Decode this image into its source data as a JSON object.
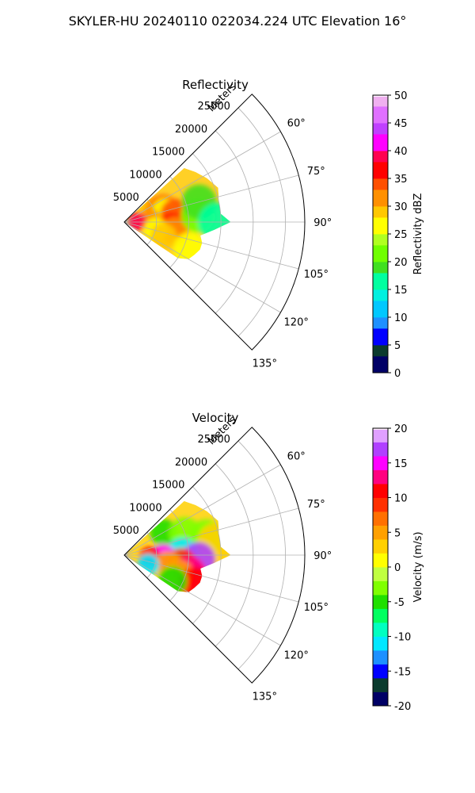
{
  "figure_title": "SKYLER-HU  20240110  022034.224 UTC Elevation 16°",
  "chart_data": [
    {
      "type": "heatmap",
      "subtype": "polar-sector-radar",
      "title": "Reflectivity",
      "radial_label": "Meters",
      "range_ticks": [
        5000,
        10000,
        15000,
        20000,
        25000
      ],
      "range_tick_labels": [
        "5000",
        "10000",
        "15000",
        "20000",
        "25000"
      ],
      "rmax": 28000,
      "azimuth_range": [
        45,
        135
      ],
      "azimuth_ticks": [
        60,
        75,
        90,
        105,
        120,
        135
      ],
      "azimuth_tick_labels": [
        "60°",
        "75°",
        "90°",
        "105°",
        "120°",
        "135°"
      ],
      "grid": true,
      "echo_extent": [
        {
          "azimuth": 48,
          "range": 12500
        },
        {
          "azimuth": 55,
          "range": 13500
        },
        {
          "azimuth": 62,
          "range": 14500
        },
        {
          "azimuth": 70,
          "range": 15500
        },
        {
          "azimuth": 78,
          "range": 15000
        },
        {
          "azimuth": 85,
          "range": 15000
        },
        {
          "azimuth": 90,
          "range": 16500
        },
        {
          "azimuth": 95,
          "range": 14000
        },
        {
          "azimuth": 100,
          "range": 12000
        },
        {
          "azimuth": 105,
          "range": 12500
        },
        {
          "azimuth": 110,
          "range": 12500
        },
        {
          "azimuth": 115,
          "range": 12000
        },
        {
          "azimuth": 120,
          "range": 11500
        },
        {
          "azimuth": 124,
          "range": 10000
        }
      ],
      "cells": [
        {
          "azimuth": 65,
          "range": 4500,
          "value": 28
        },
        {
          "azimuth": 68,
          "range": 5500,
          "value": 30
        },
        {
          "azimuth": 70,
          "range": 6500,
          "value": 33
        },
        {
          "azimuth": 75,
          "range": 6500,
          "value": 26
        },
        {
          "azimuth": 80,
          "range": 8000,
          "value": 34
        },
        {
          "azimuth": 85,
          "range": 4000,
          "value": 32
        },
        {
          "azimuth": 88,
          "range": 2000,
          "value": 38
        },
        {
          "azimuth": 95,
          "range": 7500,
          "value": 35
        },
        {
          "azimuth": 100,
          "range": 8000,
          "value": 31
        },
        {
          "azimuth": 103,
          "range": 5000,
          "value": 27
        },
        {
          "azimuth": 110,
          "range": 6500,
          "value": 28
        },
        {
          "azimuth": 112,
          "range": 11000,
          "value": 25
        },
        {
          "azimuth": 85,
          "range": 11500,
          "value": 20
        },
        {
          "azimuth": 75,
          "range": 12000,
          "value": 18
        },
        {
          "azimuth": 90,
          "range": 14500,
          "value": 15
        }
      ],
      "colorbar": {
        "label": "Reflectivity dBZ",
        "min": 0,
        "max": 50,
        "ticks": [
          0,
          5,
          10,
          15,
          20,
          25,
          30,
          35,
          40,
          45,
          50
        ],
        "colormap": [
          {
            "value": 0,
            "color": "#000066"
          },
          {
            "value": 3,
            "color": "#0b3b2e"
          },
          {
            "value": 5,
            "color": "#0000ff"
          },
          {
            "value": 8,
            "color": "#1e90ff"
          },
          {
            "value": 10,
            "color": "#00c8ff"
          },
          {
            "value": 13,
            "color": "#00f0e0"
          },
          {
            "value": 15,
            "color": "#00ffa0"
          },
          {
            "value": 18,
            "color": "#40e020"
          },
          {
            "value": 20,
            "color": "#70ff00"
          },
          {
            "value": 23,
            "color": "#b0ff20"
          },
          {
            "value": 25,
            "color": "#ffff00"
          },
          {
            "value": 28,
            "color": "#ffc800"
          },
          {
            "value": 30,
            "color": "#ff9000"
          },
          {
            "value": 33,
            "color": "#ff5000"
          },
          {
            "value": 35,
            "color": "#ff0000"
          },
          {
            "value": 38,
            "color": "#ff0050"
          },
          {
            "value": 40,
            "color": "#ff00ff"
          },
          {
            "value": 43,
            "color": "#c040ff"
          },
          {
            "value": 45,
            "color": "#e070ff"
          },
          {
            "value": 48,
            "color": "#f0b0f0"
          },
          {
            "value": 50,
            "color": "#fff0ff"
          }
        ]
      }
    },
    {
      "type": "heatmap",
      "subtype": "polar-sector-radar",
      "title": "Velocity",
      "radial_label": "Meters",
      "range_ticks": [
        5000,
        10000,
        15000,
        20000,
        25000
      ],
      "range_tick_labels": [
        "5000",
        "10000",
        "15000",
        "20000",
        "25000"
      ],
      "rmax": 28000,
      "azimuth_range": [
        45,
        135
      ],
      "azimuth_ticks": [
        60,
        75,
        90,
        105,
        120,
        135
      ],
      "azimuth_tick_labels": [
        "60°",
        "75°",
        "90°",
        "105°",
        "120°",
        "135°"
      ],
      "grid": true,
      "echo_extent": [
        {
          "azimuth": 48,
          "range": 12500
        },
        {
          "azimuth": 55,
          "range": 13500
        },
        {
          "azimuth": 62,
          "range": 14500
        },
        {
          "azimuth": 70,
          "range": 15500
        },
        {
          "azimuth": 78,
          "range": 15000
        },
        {
          "azimuth": 85,
          "range": 15000
        },
        {
          "azimuth": 90,
          "range": 16500
        },
        {
          "azimuth": 95,
          "range": 14000
        },
        {
          "azimuth": 100,
          "range": 12000
        },
        {
          "azimuth": 105,
          "range": 12500
        },
        {
          "azimuth": 110,
          "range": 12500
        },
        {
          "azimuth": 115,
          "range": 12000
        },
        {
          "azimuth": 120,
          "range": 11500
        },
        {
          "azimuth": 124,
          "range": 10000
        }
      ],
      "cells": [
        {
          "azimuth": 60,
          "range": 7000,
          "value": -5
        },
        {
          "azimuth": 70,
          "range": 10000,
          "value": -4
        },
        {
          "azimuth": 78,
          "range": 13000,
          "value": -3
        },
        {
          "azimuth": 82,
          "range": 14500,
          "value": 2
        },
        {
          "azimuth": 88,
          "range": 9000,
          "value": -12
        },
        {
          "azimuth": 92,
          "range": 6000,
          "value": 15
        },
        {
          "azimuth": 93,
          "range": 11500,
          "value": 16
        },
        {
          "azimuth": 96,
          "range": 4000,
          "value": 10
        },
        {
          "azimuth": 98,
          "range": 9000,
          "value": 9
        },
        {
          "azimuth": 102,
          "range": 7000,
          "value": 4
        },
        {
          "azimuth": 105,
          "range": 10500,
          "value": 12
        },
        {
          "azimuth": 110,
          "range": 9000,
          "value": 4
        },
        {
          "azimuth": 112,
          "range": 12000,
          "value": 10
        },
        {
          "azimuth": 118,
          "range": 8500,
          "value": -6
        },
        {
          "azimuth": 112,
          "range": 4000,
          "value": -11
        }
      ],
      "colorbar": {
        "label": "Velocity (m/s)",
        "min": -20,
        "max": 20,
        "ticks": [
          -20,
          -15,
          -10,
          -5,
          0,
          5,
          10,
          15,
          20
        ],
        "colormap": [
          {
            "value": -20,
            "color": "#000066"
          },
          {
            "value": -18,
            "color": "#0b3b2e"
          },
          {
            "value": -16,
            "color": "#0000ff"
          },
          {
            "value": -14,
            "color": "#1e90ff"
          },
          {
            "value": -12,
            "color": "#00e8ff"
          },
          {
            "value": -10,
            "color": "#00ffc0"
          },
          {
            "value": -8,
            "color": "#00ff60"
          },
          {
            "value": -6,
            "color": "#20e000"
          },
          {
            "value": -4,
            "color": "#80ff00"
          },
          {
            "value": -2,
            "color": "#c0ff40"
          },
          {
            "value": 0,
            "color": "#ffff00"
          },
          {
            "value": 2,
            "color": "#ffd000"
          },
          {
            "value": 4,
            "color": "#ffa000"
          },
          {
            "value": 6,
            "color": "#ff7000"
          },
          {
            "value": 8,
            "color": "#ff3000"
          },
          {
            "value": 10,
            "color": "#ff0000"
          },
          {
            "value": 12,
            "color": "#ff0080"
          },
          {
            "value": 14,
            "color": "#ff00ff"
          },
          {
            "value": 16,
            "color": "#b040ff"
          },
          {
            "value": 18,
            "color": "#e0a0ff"
          },
          {
            "value": 20,
            "color": "#fff0ff"
          }
        ]
      }
    }
  ]
}
